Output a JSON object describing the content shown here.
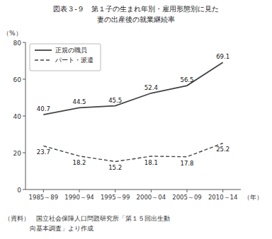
{
  "chart_data": {
    "type": "line",
    "title": "図表３-９　第１子の生まれ年別・雇用形態別に見た",
    "subtitle": "妻の出産後の就業継続率",
    "ylabel": "（%）",
    "xlabel": "（年）",
    "categories": [
      "1985～89",
      "1990～94",
      "1995～99",
      "2000～04",
      "2005～09",
      "2010～14"
    ],
    "series": [
      {
        "name": "正規の職員",
        "color": "#444444",
        "line_style": "solid",
        "values": [
          40.7,
          44.5,
          45.5,
          52.4,
          56.5,
          69.1
        ]
      },
      {
        "name": "パート・派遣",
        "color": "#444444",
        "line_style": "dashed",
        "values": [
          23.7,
          18.2,
          15.2,
          18.1,
          17.8,
          25.2
        ]
      }
    ],
    "ylim": [
      0,
      80
    ],
    "yticks": [
      0,
      20,
      40,
      60,
      80
    ],
    "grid": false,
    "legend": "upper left",
    "data_labels": true,
    "annotations": [
      "（資料）　国立社会保障人口問題研究所「第１５回出生動",
      "　　　　向基本調査」より作成"
    ]
  }
}
